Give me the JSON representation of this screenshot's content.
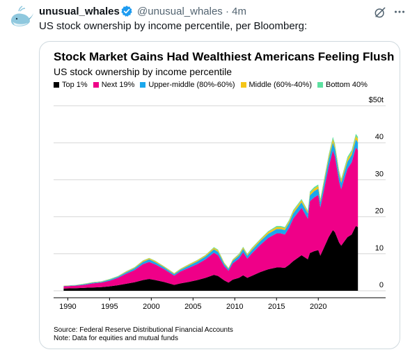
{
  "tweet": {
    "author_name": "unusual_whales",
    "handle": "@unusual_whales",
    "separator": "·",
    "time": "4m",
    "text": "US stock ownership by income percentile, per Bloomberg:",
    "verified_color": "#1d9bf0",
    "icons": [
      "whale-avatar",
      "verified-badge-icon",
      "grok-icon",
      "more-icon"
    ]
  },
  "chart_data": {
    "type": "area",
    "stacked": true,
    "title": "Stock Market Gains Had Wealthiest Americans Feeling Flush",
    "subtitle": "US stock ownership by income percentile",
    "unit_label": "$50t",
    "ylim": [
      0,
      50
    ],
    "yticks": [
      "0",
      "10",
      "20",
      "30",
      "40"
    ],
    "xticks": [
      "1990",
      "1995",
      "2000",
      "2005",
      "2010",
      "2015",
      "2020"
    ],
    "grid": true,
    "legend_position": "top-left",
    "x": [
      1989.5,
      1991,
      1992,
      1993,
      1994,
      1995,
      1996,
      1997,
      1998,
      1999,
      1999.75,
      2000.5,
      2001.5,
      2002.75,
      2003.5,
      2004.5,
      2005.5,
      2006.5,
      2007.5,
      2008,
      2008.75,
      2009.25,
      2009.75,
      2010.5,
      2011,
      2011.5,
      2012,
      2013,
      2014,
      2015,
      2015.5,
      2016,
      2016.5,
      2017,
      2018,
      2018.75,
      2019,
      2019.5,
      2020,
      2020.25,
      2020.75,
      2021.25,
      2021.75,
      2022,
      2022.5,
      2022.75,
      2023.5,
      2024,
      2024.5,
      2024.75
    ],
    "series": [
      {
        "name": "Top 1%",
        "color": "#000000",
        "values": [
          0.6,
          0.7,
          0.8,
          0.9,
          1.0,
          1.2,
          1.5,
          1.9,
          2.3,
          2.9,
          3.2,
          2.9,
          2.4,
          1.6,
          2.0,
          2.4,
          2.9,
          3.5,
          4.3,
          4.0,
          2.8,
          2.2,
          3.0,
          3.5,
          4.2,
          3.5,
          4.0,
          5.0,
          5.8,
          6.3,
          6.3,
          6.2,
          7.0,
          8.0,
          9.6,
          8.5,
          10.2,
          10.7,
          11.0,
          9.5,
          12.0,
          14.5,
          16.4,
          15.8,
          13.0,
          12.2,
          14.5,
          15.2,
          17.5,
          17.2
        ]
      },
      {
        "name": "Next 19%",
        "color": "#ef0088",
        "values": [
          0.6,
          0.7,
          0.8,
          1.1,
          1.2,
          1.5,
          2.0,
          2.7,
          3.3,
          4.3,
          4.6,
          4.2,
          3.5,
          2.5,
          3.2,
          3.8,
          4.3,
          5.0,
          6.0,
          5.6,
          3.8,
          3.2,
          4.4,
          5.2,
          6.2,
          5.2,
          6.0,
          7.3,
          8.5,
          9.2,
          9.2,
          9.0,
          10.0,
          11.5,
          12.8,
          11.0,
          14.0,
          14.5,
          14.9,
          13.0,
          16.0,
          19.0,
          21.5,
          20.5,
          16.5,
          15.3,
          18.5,
          19.5,
          21.2,
          20.8
        ]
      },
      {
        "name": "Upper-middle (80%-60%)",
        "color": "#1aa7ec",
        "values": [
          0.1,
          0.1,
          0.2,
          0.2,
          0.2,
          0.3,
          0.3,
          0.4,
          0.5,
          0.6,
          0.7,
          0.6,
          0.5,
          0.4,
          0.5,
          0.6,
          0.7,
          0.8,
          0.9,
          0.9,
          0.6,
          0.5,
          0.7,
          0.8,
          0.9,
          0.8,
          0.9,
          1.0,
          1.1,
          1.2,
          1.2,
          1.2,
          1.3,
          1.4,
          1.5,
          1.4,
          1.6,
          1.7,
          1.7,
          1.5,
          1.8,
          2.0,
          2.2,
          2.1,
          1.8,
          1.7,
          1.9,
          2.0,
          2.2,
          2.1
        ]
      },
      {
        "name": "Middle (60%-40%)",
        "color": "#f5c518",
        "values": [
          0.05,
          0.05,
          0.1,
          0.1,
          0.1,
          0.1,
          0.1,
          0.2,
          0.2,
          0.3,
          0.3,
          0.3,
          0.2,
          0.2,
          0.2,
          0.3,
          0.3,
          0.3,
          0.4,
          0.4,
          0.3,
          0.2,
          0.3,
          0.3,
          0.4,
          0.3,
          0.4,
          0.4,
          0.5,
          0.5,
          0.5,
          0.5,
          0.5,
          0.6,
          0.6,
          0.5,
          0.6,
          0.7,
          0.7,
          0.6,
          0.7,
          0.8,
          0.9,
          0.8,
          0.7,
          0.7,
          0.8,
          0.8,
          0.9,
          0.9
        ]
      },
      {
        "name": "Bottom 40%",
        "color": "#5ce0a0",
        "values": [
          0.05,
          0.05,
          0.05,
          0.05,
          0.05,
          0.1,
          0.1,
          0.1,
          0.1,
          0.1,
          0.1,
          0.1,
          0.1,
          0.1,
          0.1,
          0.1,
          0.1,
          0.1,
          0.2,
          0.2,
          0.1,
          0.1,
          0.1,
          0.2,
          0.2,
          0.2,
          0.2,
          0.2,
          0.2,
          0.3,
          0.3,
          0.3,
          0.3,
          0.3,
          0.3,
          0.3,
          0.4,
          0.4,
          0.4,
          0.3,
          0.4,
          0.5,
          0.6,
          0.5,
          0.5,
          0.4,
          0.5,
          0.5,
          0.6,
          0.6
        ]
      }
    ],
    "source": "Source: Federal Reserve Distributional Financial Accounts",
    "note": "Note: Data for equities and mutual funds"
  }
}
